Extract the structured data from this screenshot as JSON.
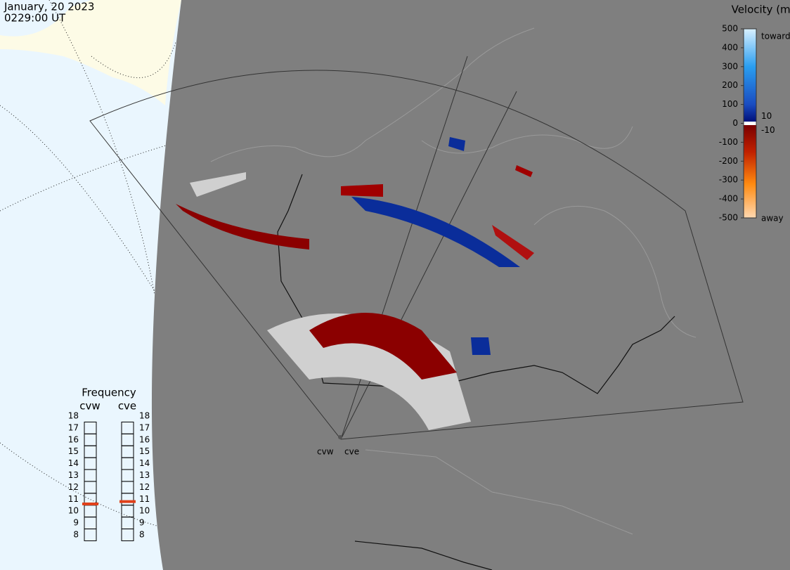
{
  "header": {
    "date": "January, 20 2023",
    "time": "0229:00 UT"
  },
  "colorbar": {
    "title": "Velocity (m/s)",
    "ticks": [
      500,
      400,
      300,
      200,
      100,
      0,
      -100,
      -200,
      -300,
      -400,
      -500
    ],
    "inner_ticks": [
      10,
      -10
    ],
    "top_label": "toward",
    "bottom_label": "away"
  },
  "frequency": {
    "title": "Frequency",
    "ticks": [
      8,
      9,
      10,
      11,
      12,
      13,
      14,
      15,
      16,
      17,
      18
    ],
    "radars": [
      {
        "name": "cvw",
        "value": 10.6
      },
      {
        "name": "cve",
        "value": 10.8
      }
    ]
  },
  "stations": [
    "cvw",
    "cve"
  ]
}
